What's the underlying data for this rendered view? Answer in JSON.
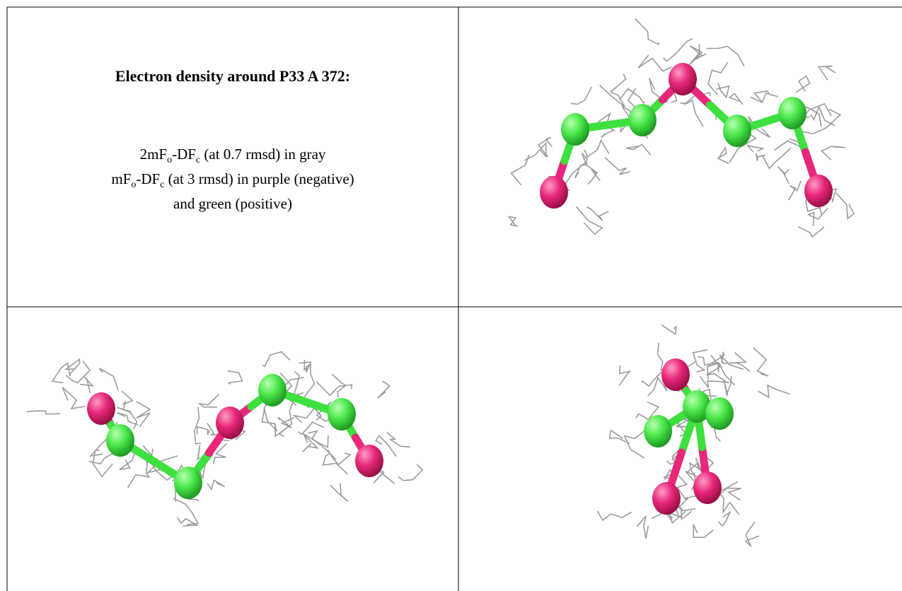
{
  "caption": {
    "title": "Electron density around P33 A 372:",
    "lines": [
      [
        {
          "text": "2mF"
        },
        {
          "sub": "o"
        },
        {
          "text": "-DF"
        },
        {
          "sub": "c"
        },
        {
          "text": " (at 0.7 rmsd) in gray"
        }
      ],
      [
        {
          "text": "mF"
        },
        {
          "sub": "o"
        },
        {
          "text": "-DF"
        },
        {
          "sub": "c"
        },
        {
          "text": " (at 3 rmsd) in purple (negative)"
        }
      ],
      [
        {
          "text": "and green (positive)"
        }
      ]
    ]
  }
}
